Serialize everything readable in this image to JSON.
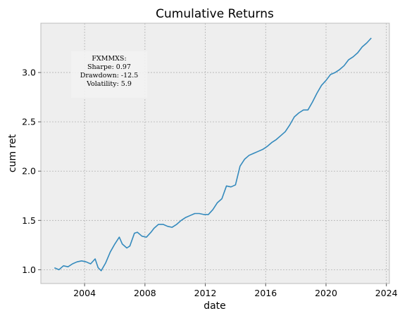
{
  "chart_data": {
    "type": "line",
    "title": "Cumulative Returns",
    "xlabel": "date",
    "ylabel": "cum ret",
    "xlim": [
      2001.1,
      2024.2
    ],
    "ylim": [
      0.86,
      3.5
    ],
    "x_ticks": [
      2004,
      2008,
      2012,
      2016,
      2020,
      2024
    ],
    "y_ticks": [
      1.0,
      1.5,
      2.0,
      2.5,
      3.0
    ],
    "y_tick_labels": [
      "1.0",
      "1.5",
      "2.0",
      "2.5",
      "3.0"
    ],
    "grid": true,
    "legend": null,
    "colors": {
      "series": "#348ABD",
      "plot_background": "#EEEEEE",
      "grid": "#B2B2B2",
      "stats_box": "#F2F2F2"
    },
    "annotation": {
      "lines": [
        "FXMMXS:",
        "Sharpe: 0.97",
        "Drawdown: -12.5",
        "Volatility: 5.9"
      ],
      "placement": "upper-left"
    },
    "series": [
      {
        "x": [
          2002.0,
          2002.3,
          2002.6,
          2002.9,
          2003.2,
          2003.5,
          2003.8,
          2004.1,
          2004.4,
          2004.7,
          2004.9,
          2005.1,
          2005.4,
          2005.7,
          2006.0,
          2006.3,
          2006.5,
          2006.8,
          2007.0,
          2007.3,
          2007.5,
          2007.8,
          2008.1,
          2008.4,
          2008.6,
          2008.9,
          2009.2,
          2009.5,
          2009.8,
          2010.1,
          2010.4,
          2010.7,
          2011.0,
          2011.3,
          2011.6,
          2011.9,
          2012.2,
          2012.5,
          2012.8,
          2013.1,
          2013.4,
          2013.7,
          2014.0,
          2014.3,
          2014.6,
          2014.9,
          2015.2,
          2015.5,
          2015.8,
          2016.1,
          2016.4,
          2016.7,
          2017.0,
          2017.3,
          2017.6,
          2017.9,
          2018.2,
          2018.5,
          2018.8,
          2019.1,
          2019.4,
          2019.7,
          2020.0,
          2020.3,
          2020.6,
          2020.9,
          2021.2,
          2021.5,
          2021.8,
          2022.1,
          2022.4,
          2022.7,
          2023.0
        ],
        "y": [
          1.02,
          1.0,
          1.04,
          1.03,
          1.06,
          1.08,
          1.09,
          1.08,
          1.06,
          1.11,
          1.02,
          0.99,
          1.07,
          1.18,
          1.26,
          1.33,
          1.26,
          1.22,
          1.24,
          1.37,
          1.38,
          1.34,
          1.33,
          1.38,
          1.42,
          1.46,
          1.46,
          1.44,
          1.43,
          1.46,
          1.5,
          1.53,
          1.55,
          1.57,
          1.57,
          1.56,
          1.56,
          1.61,
          1.68,
          1.72,
          1.85,
          1.84,
          1.86,
          2.05,
          2.12,
          2.16,
          2.18,
          2.2,
          2.22,
          2.25,
          2.29,
          2.32,
          2.36,
          2.4,
          2.47,
          2.55,
          2.59,
          2.62,
          2.62,
          2.7,
          2.79,
          2.87,
          2.92,
          2.98,
          3.0,
          3.03,
          3.07,
          3.13,
          3.16,
          3.2,
          3.26,
          3.3,
          3.35
        ]
      }
    ]
  }
}
